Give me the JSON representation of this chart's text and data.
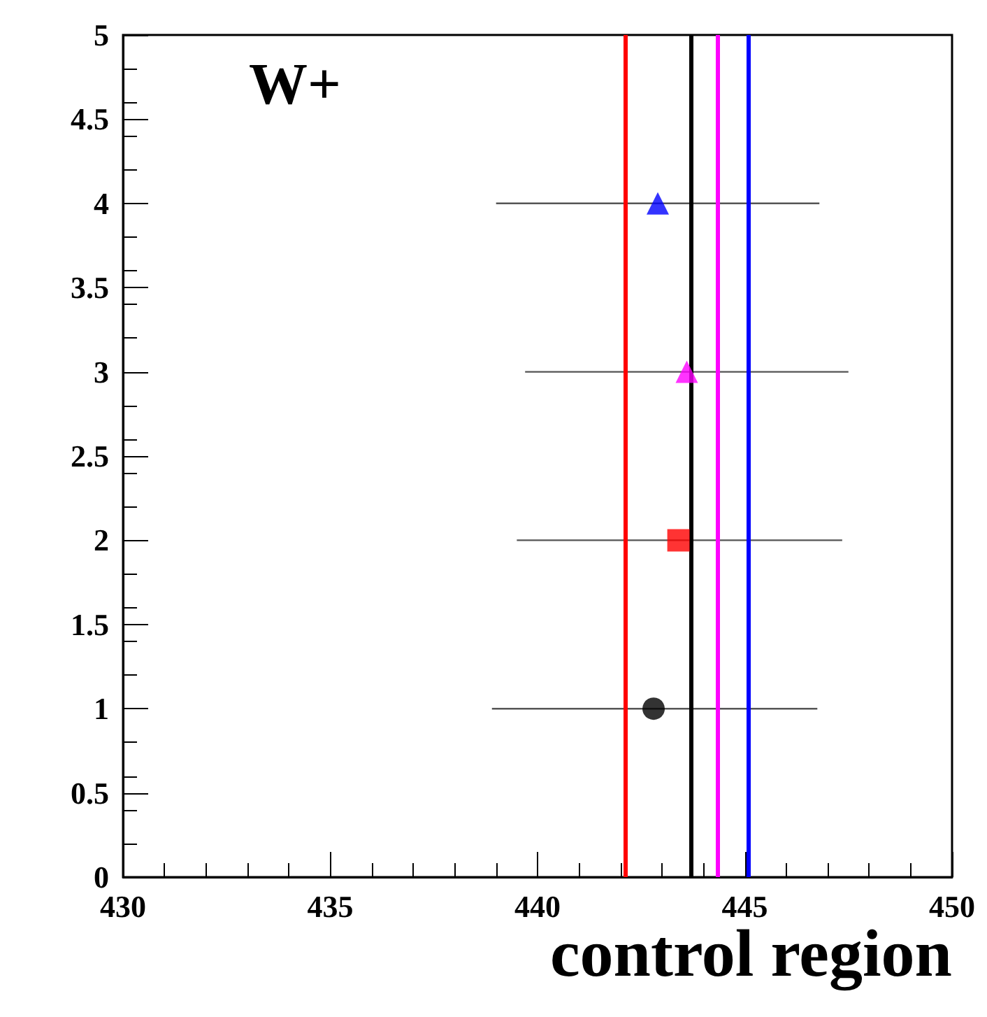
{
  "chart_data": {
    "type": "scatter",
    "xlabel": "control region",
    "annotations": [
      "W+"
    ],
    "xlim": [
      430,
      450
    ],
    "xticks": [
      430,
      435,
      440,
      445,
      450
    ],
    "ylim": [
      0,
      5
    ],
    "yticks": [
      0,
      0.5,
      1,
      1.5,
      2,
      2.5,
      3,
      3.5,
      4,
      4.5,
      5
    ],
    "series": [
      {
        "color": "#000000",
        "marker": "circle",
        "x": [
          442.8
        ],
        "values": [
          1
        ],
        "xerrors": [
          [
            438.9,
            446.75
          ]
        ]
      },
      {
        "color": "#ff0000",
        "marker": "square",
        "x": [
          443.4
        ],
        "values": [
          2
        ],
        "xerrors": [
          [
            439.5,
            447.35
          ]
        ]
      },
      {
        "color": "#ff00ff",
        "marker": "triangle",
        "x": [
          443.6
        ],
        "values": [
          3
        ],
        "xerrors": [
          [
            439.7,
            447.5
          ]
        ]
      },
      {
        "color": "#0000ff",
        "marker": "triangle",
        "x": [
          442.9
        ],
        "values": [
          4
        ],
        "xerrors": [
          [
            439.0,
            446.8
          ]
        ]
      }
    ],
    "ref_lines": [
      {
        "axis": "x",
        "value": 442.1,
        "color": "#ff0000"
      },
      {
        "axis": "x",
        "value": 443.7,
        "color": "#000000"
      },
      {
        "axis": "x",
        "value": 444.35,
        "color": "#ff00ff"
      },
      {
        "axis": "x",
        "value": 445.1,
        "color": "#0000ff"
      }
    ]
  }
}
